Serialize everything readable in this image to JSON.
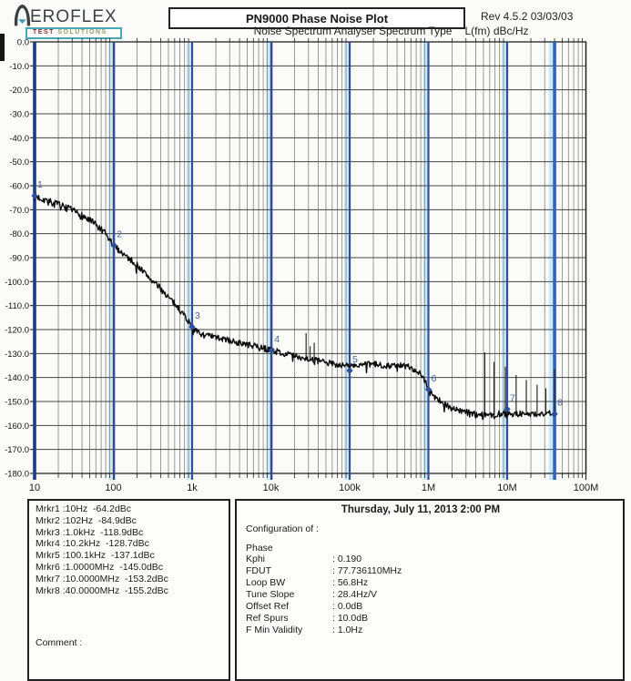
{
  "header": {
    "brand_text": "EROFLEX",
    "tagline_test": "TEST",
    "tagline_solutions": "SOLUTIONS",
    "title": "PN9000 Phase Noise Plot",
    "subtitle": "Noise Spectrum Analyser",
    "spectrum_type_label": "Spectrum Type",
    "spectrum_type_value": "L(fm) dBc/Hz",
    "revision": "Rev 4.5.2  03/03/03"
  },
  "chart_data": {
    "type": "line",
    "title": "PN9000 Phase Noise Plot",
    "x_scale": "log",
    "x_range_hz": [
      10,
      100000000
    ],
    "x_tick_labels": [
      "10",
      "100",
      "1k",
      "10k",
      "100k",
      "1M",
      "10M",
      "100M"
    ],
    "y_range_db": [
      -180,
      0
    ],
    "y_tick_step_db": 10,
    "y_tick_labels": [
      "0.0",
      "-10.0",
      "-20.0",
      "-30.0",
      "-40.0",
      "-50.0",
      "-60.0",
      "-70.0",
      "-80.0",
      "-90.0",
      "-100.0",
      "-110.0",
      "-120.0",
      "-130.0",
      "-140.0",
      "-150.0",
      "-160.0",
      "-170.0",
      "-180.0"
    ],
    "y_unit": "dBc/Hz",
    "grid": "log-decades with 10 dB rows",
    "trace_end_hz": 40000000,
    "noise_amplitude_db": 1.3,
    "trace_breakpoints": [
      [
        10,
        -64.5
      ],
      [
        13,
        -65.5
      ],
      [
        16,
        -67
      ],
      [
        20,
        -68
      ],
      [
        25,
        -69.5
      ],
      [
        30,
        -70.5
      ],
      [
        40,
        -72.5
      ],
      [
        50,
        -74.5
      ],
      [
        65,
        -77.5
      ],
      [
        80,
        -80.5
      ],
      [
        100,
        -84.9
      ],
      [
        130,
        -88
      ],
      [
        160,
        -90.5
      ],
      [
        200,
        -93
      ],
      [
        260,
        -97
      ],
      [
        320,
        -100
      ],
      [
        400,
        -103
      ],
      [
        500,
        -106.5
      ],
      [
        650,
        -110.5
      ],
      [
        800,
        -114
      ],
      [
        1000,
        -118.9
      ],
      [
        1150,
        -121
      ],
      [
        1400,
        -122.3
      ],
      [
        1800,
        -123
      ],
      [
        2500,
        -124
      ],
      [
        3500,
        -125.2
      ],
      [
        5000,
        -126.3
      ],
      [
        7000,
        -127.4
      ],
      [
        10000,
        -128.5
      ],
      [
        14000,
        -129.8
      ],
      [
        20000,
        -131
      ],
      [
        30000,
        -132.2
      ],
      [
        45000,
        -133.5
      ],
      [
        65000,
        -134.4
      ],
      [
        100000,
        -135.3
      ],
      [
        140000,
        -134.7
      ],
      [
        200000,
        -134.5
      ],
      [
        300000,
        -135
      ],
      [
        450000,
        -135
      ],
      [
        600000,
        -135.8
      ],
      [
        750000,
        -137.5
      ],
      [
        900000,
        -141
      ],
      [
        1000000,
        -144.5
      ],
      [
        1200000,
        -148
      ],
      [
        1500000,
        -150.5
      ],
      [
        2000000,
        -152.8
      ],
      [
        2600000,
        -154
      ],
      [
        3500000,
        -155
      ],
      [
        5000000,
        -155.5
      ],
      [
        7000000,
        -155.3
      ],
      [
        10000000,
        -155
      ],
      [
        15000000,
        -155.2
      ],
      [
        22000000,
        -155.3
      ],
      [
        30000000,
        -155
      ],
      [
        40000000,
        -155.2
      ]
    ],
    "spurs": [
      [
        28000,
        -121.5
      ],
      [
        31500,
        -127
      ],
      [
        35500,
        -125.5
      ],
      [
        5200000,
        -129.5
      ],
      [
        6800000,
        -133.5
      ],
      [
        9500000,
        -135.5
      ],
      [
        13000000,
        -139
      ],
      [
        17500000,
        -141
      ],
      [
        24000000,
        -143
      ],
      [
        31000000,
        -144.5
      ],
      [
        40000000,
        -136.5
      ]
    ],
    "markers": [
      {
        "n": 1,
        "freq_hz": 10,
        "freq_label": "10Hz",
        "value_db": -64.2
      },
      {
        "n": 2,
        "freq_hz": 102,
        "freq_label": "102Hz",
        "value_db": -84.9
      },
      {
        "n": 3,
        "freq_hz": 1000,
        "freq_label": "1.0kHz",
        "value_db": -118.9
      },
      {
        "n": 4,
        "freq_hz": 10200,
        "freq_label": "10.2kHz",
        "value_db": -128.7
      },
      {
        "n": 5,
        "freq_hz": 100100,
        "freq_label": "100.1kHz",
        "value_db": -137.1
      },
      {
        "n": 6,
        "freq_hz": 1000000,
        "freq_label": "1.0000MHz",
        "value_db": -145.0
      },
      {
        "n": 7,
        "freq_hz": 10000000,
        "freq_label": "10.0000MHz",
        "value_db": -153.2
      },
      {
        "n": 8,
        "freq_hz": 40000000,
        "freq_label": "40.0000MHz",
        "value_db": -155.2
      }
    ]
  },
  "marker_panel": {
    "lines": [
      "Mrkr1 :10Hz  -64.2dBc",
      "Mrkr2 :102Hz  -84.9dBc",
      "Mrkr3 :1.0kHz  -118.9dBc",
      "Mrkr4 :10.2kHz  -128.7dBc",
      "Mrkr5 :100.1kHz  -137.1dBc",
      "Mrkr6 :1.0000MHz  -145.0dBc",
      "Mrkr7 :10.0000MHz  -153.2dBc",
      "Mrkr8 :40.0000MHz  -155.2dBc"
    ],
    "comment_label": "Comment :"
  },
  "config_panel": {
    "datetime": "Thursday, July 11, 2013    2:00 PM",
    "config_of_label": "Configuration of :",
    "section": "Phase",
    "rows": [
      {
        "label": "Kphi",
        "value": ": 0.190"
      },
      {
        "label": "FDUT",
        "value": ": 77.736110MHz"
      },
      {
        "label": "Loop BW",
        "value": ": 56.8Hz"
      },
      {
        "label": "Tune Slope",
        "value": ": 28.4Hz/V"
      },
      {
        "label": "Offset Ref",
        "value": ": 0.0dB"
      },
      {
        "label": "Ref Spurs",
        "value": ": 10.0dB"
      },
      {
        "label": "F Min Validity",
        "value": ": 1.0Hz"
      }
    ]
  },
  "colors": {
    "trace": "#0b0b0b",
    "grid_minor": "#8f8f8f",
    "grid_decade": "#2f2f2f",
    "grid_horizontal": "#454545",
    "marker_line": "#2d4f9e",
    "marker_band": "#cdeaf4",
    "marker1_line": "#1c3e7e",
    "marker8_line": "#2e63c6",
    "marker_label": "#44639f",
    "logo_teal": "#49a8b8",
    "logo_text": "#3a3f45"
  }
}
